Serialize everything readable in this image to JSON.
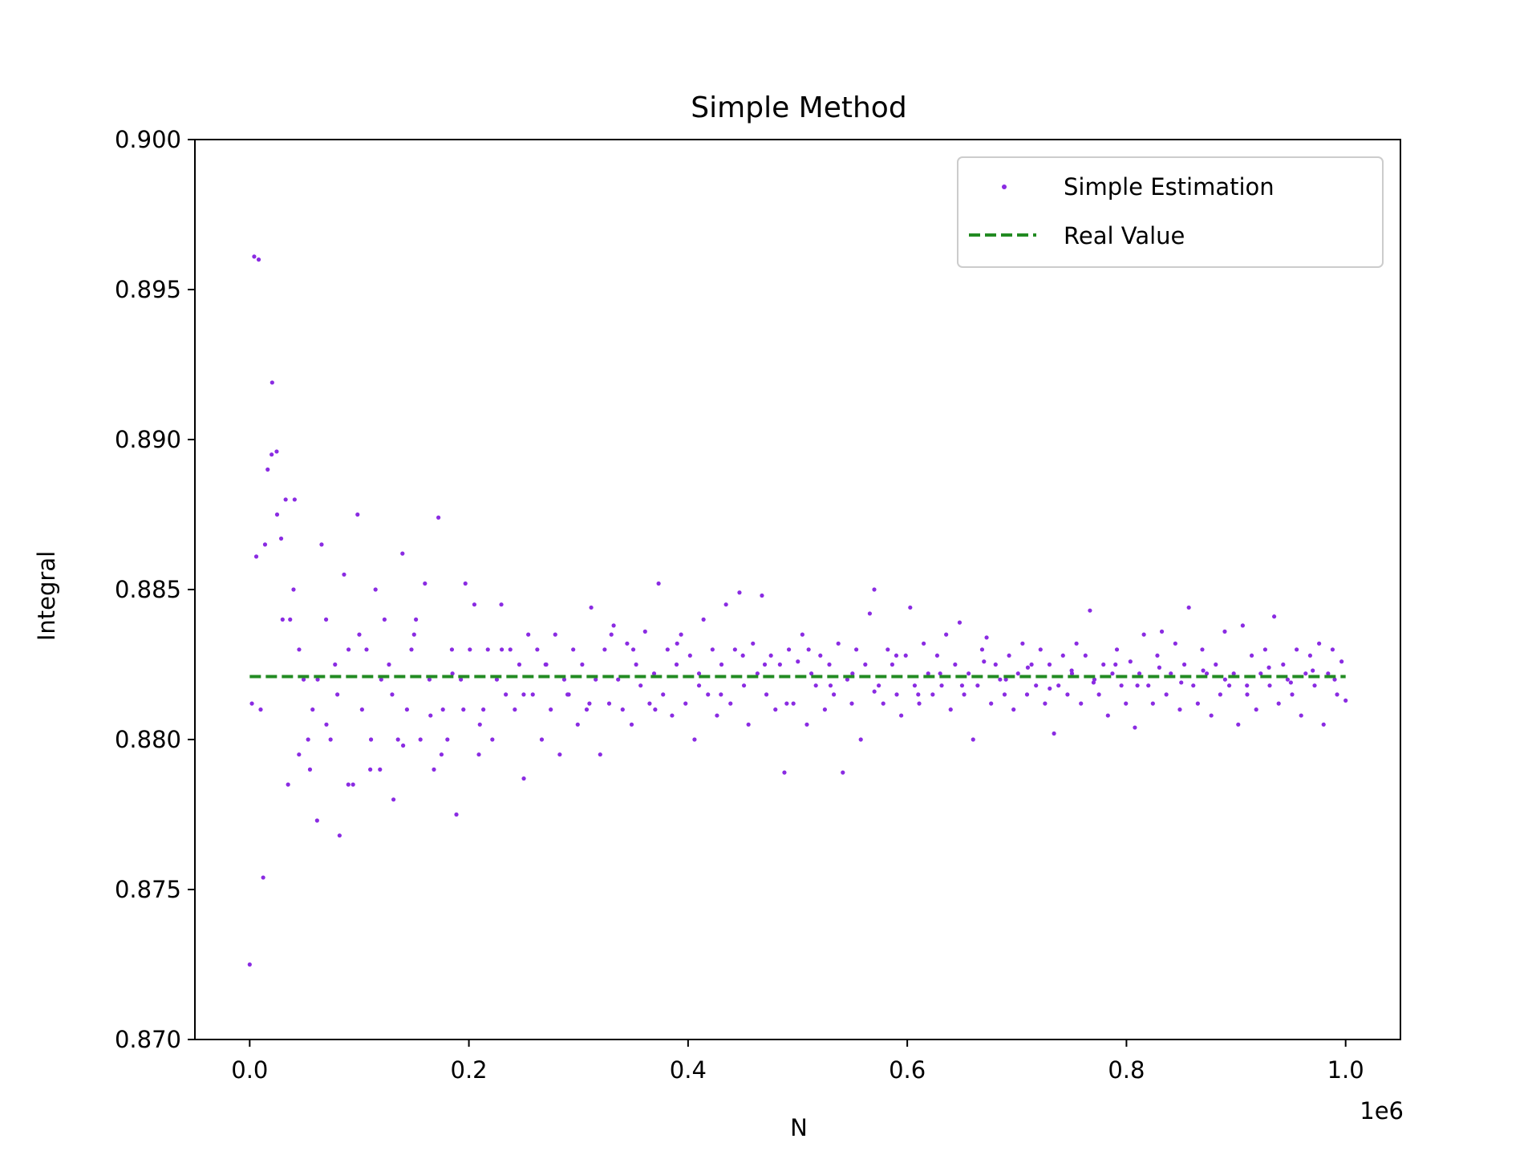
{
  "chart_data": {
    "type": "scatter",
    "title": "Simple Method",
    "xlabel": "N",
    "ylabel": "Integral",
    "x_offset_label": "1e6",
    "xlim": [
      -0.05,
      1.05
    ],
    "ylim": [
      0.87,
      0.9
    ],
    "x_ticks": [
      0.0,
      0.2,
      0.4,
      0.6,
      0.8,
      1.0
    ],
    "x_tick_labels": [
      "0.0",
      "0.2",
      "0.4",
      "0.6",
      "0.8",
      "1.0"
    ],
    "y_ticks": [
      0.87,
      0.875,
      0.88,
      0.885,
      0.89,
      0.895,
      0.9
    ],
    "y_tick_labels": [
      "0.870",
      "0.875",
      "0.880",
      "0.885",
      "0.890",
      "0.895",
      "0.900"
    ],
    "grid": false,
    "legend_position": "top-right",
    "series": [
      {
        "name": "Simple Estimation",
        "kind": "scatter",
        "color": "#8a2be2",
        "x": [
          0.0,
          0.0041,
          0.0082,
          0.0123,
          0.0164,
          0.0205,
          0.0246,
          0.0287,
          0.0328,
          0.0369,
          0.041,
          0.0451,
          0.0492,
          0.0533,
          0.0574,
          0.0615,
          0.0656,
          0.0697,
          0.0738,
          0.0779,
          0.082,
          0.0861,
          0.0902,
          0.0943,
          0.0984,
          0.1025,
          0.1066,
          0.1107,
          0.1148,
          0.1189,
          0.123,
          0.1271,
          0.1312,
          0.1353,
          0.1394,
          0.1435,
          0.1476,
          0.1517,
          0.1558,
          0.1599,
          0.164,
          0.1681,
          0.1722,
          0.1763,
          0.1804,
          0.1845,
          0.1886,
          0.1927,
          0.1968,
          0.2009,
          0.205,
          0.2091,
          0.2132,
          0.2173,
          0.2214,
          0.2255,
          0.2296,
          0.2337,
          0.2378,
          0.2419,
          0.246,
          0.2501,
          0.2542,
          0.2583,
          0.2624,
          0.2665,
          0.2706,
          0.2747,
          0.2788,
          0.2829,
          0.287,
          0.2911,
          0.2952,
          0.2993,
          0.3034,
          0.3075,
          0.3116,
          0.3157,
          0.3198,
          0.3239,
          0.328,
          0.3321,
          0.3362,
          0.3403,
          0.3444,
          0.3485,
          0.3526,
          0.3567,
          0.3608,
          0.3649,
          0.369,
          0.3731,
          0.3772,
          0.3813,
          0.3854,
          0.3895,
          0.3936,
          0.3977,
          0.4018,
          0.4059,
          0.41,
          0.4141,
          0.4182,
          0.4223,
          0.4264,
          0.4305,
          0.4346,
          0.4387,
          0.4428,
          0.4469,
          0.451,
          0.4551,
          0.4592,
          0.4633,
          0.4674,
          0.4715,
          0.4756,
          0.4797,
          0.4838,
          0.4879,
          0.492,
          0.4961,
          0.5002,
          0.5043,
          0.5084,
          0.5125,
          0.5166,
          0.5207,
          0.5248,
          0.5289,
          0.533,
          0.5371,
          0.5412,
          0.5453,
          0.5494,
          0.5535,
          0.5576,
          0.5617,
          0.5658,
          0.5699,
          0.574,
          0.5781,
          0.5822,
          0.5863,
          0.5904,
          0.5945,
          0.5986,
          0.6027,
          0.6068,
          0.6109,
          0.615,
          0.6191,
          0.6232,
          0.6273,
          0.6314,
          0.6355,
          0.6396,
          0.6437,
          0.6478,
          0.6519,
          0.656,
          0.6601,
          0.6642,
          0.6683,
          0.6724,
          0.6765,
          0.6806,
          0.6847,
          0.6888,
          0.6929,
          0.697,
          0.7011,
          0.7052,
          0.7093,
          0.7134,
          0.7175,
          0.7216,
          0.7257,
          0.7298,
          0.7339,
          0.738,
          0.7421,
          0.7462,
          0.7503,
          0.7544,
          0.7585,
          0.7626,
          0.7667,
          0.7708,
          0.7749,
          0.779,
          0.7831,
          0.7872,
          0.7913,
          0.7954,
          0.7995,
          0.8036,
          0.8077,
          0.8118,
          0.8159,
          0.82,
          0.8241,
          0.8282,
          0.8323,
          0.8364,
          0.8405,
          0.8446,
          0.8487,
          0.8528,
          0.8569,
          0.861,
          0.8651,
          0.8692,
          0.8733,
          0.8774,
          0.8815,
          0.8856,
          0.8897,
          0.8938,
          0.8979,
          0.902,
          0.9061,
          0.9102,
          0.9143,
          0.9184,
          0.9225,
          0.9266,
          0.9307,
          0.9348,
          0.9389,
          0.943,
          0.9471,
          0.9512,
          0.9553,
          0.9594,
          0.9635,
          0.9676,
          0.9717,
          0.9758,
          0.9799,
          0.984,
          0.9881,
          0.9922,
          0.9963,
          1.0,
          0.002,
          0.006,
          0.01,
          0.014,
          0.02,
          0.025,
          0.03,
          0.035,
          0.04,
          0.045,
          0.055,
          0.062,
          0.07,
          0.08,
          0.09,
          0.1,
          0.11,
          0.12,
          0.13,
          0.14,
          0.15,
          0.165,
          0.175,
          0.185,
          0.195,
          0.21,
          0.23,
          0.25,
          0.27,
          0.29,
          0.31,
          0.33,
          0.35,
          0.37,
          0.39,
          0.41,
          0.43,
          0.45,
          0.47,
          0.49,
          0.51,
          0.53,
          0.55,
          0.57,
          0.59,
          0.61,
          0.63,
          0.65,
          0.67,
          0.69,
          0.71,
          0.73,
          0.75,
          0.77,
          0.79,
          0.81,
          0.83,
          0.85,
          0.87,
          0.89,
          0.91,
          0.93,
          0.95,
          0.97,
          0.99
        ],
        "y": [
          0.8725,
          0.8961,
          0.896,
          0.8754,
          0.889,
          0.8919,
          0.8896,
          0.8867,
          0.888,
          0.884,
          0.888,
          0.883,
          0.882,
          0.88,
          0.881,
          0.8773,
          0.8865,
          0.884,
          0.88,
          0.8825,
          0.8768,
          0.8855,
          0.883,
          0.8785,
          0.8875,
          0.881,
          0.883,
          0.88,
          0.885,
          0.879,
          0.884,
          0.8825,
          0.878,
          0.88,
          0.8862,
          0.881,
          0.883,
          0.884,
          0.88,
          0.8852,
          0.882,
          0.879,
          0.8874,
          0.881,
          0.88,
          0.883,
          0.8775,
          0.882,
          0.8852,
          0.883,
          0.8845,
          0.8795,
          0.881,
          0.883,
          0.88,
          0.882,
          0.8845,
          0.8815,
          0.883,
          0.881,
          0.8825,
          0.8787,
          0.8835,
          0.8815,
          0.883,
          0.88,
          0.8825,
          0.881,
          0.8835,
          0.8795,
          0.882,
          0.8815,
          0.883,
          0.8805,
          0.8825,
          0.881,
          0.8844,
          0.882,
          0.8795,
          0.883,
          0.8812,
          0.8838,
          0.882,
          0.881,
          0.8832,
          0.8805,
          0.8825,
          0.8818,
          0.8836,
          0.8812,
          0.8822,
          0.8852,
          0.8815,
          0.883,
          0.8808,
          0.8825,
          0.8835,
          0.8812,
          0.8828,
          0.88,
          0.8822,
          0.884,
          0.8815,
          0.883,
          0.8808,
          0.8825,
          0.8845,
          0.8812,
          0.883,
          0.8849,
          0.8818,
          0.8805,
          0.8832,
          0.8822,
          0.8848,
          0.8815,
          0.8828,
          0.881,
          0.8825,
          0.8789,
          0.883,
          0.8812,
          0.8826,
          0.8835,
          0.8805,
          0.8822,
          0.8818,
          0.8828,
          0.881,
          0.8825,
          0.8815,
          0.8832,
          0.8789,
          0.882,
          0.8812,
          0.883,
          0.88,
          0.8825,
          0.8842,
          0.885,
          0.8818,
          0.8812,
          0.883,
          0.8825,
          0.8815,
          0.8808,
          0.8828,
          0.8844,
          0.8818,
          0.8812,
          0.8832,
          0.8822,
          0.8815,
          0.8828,
          0.8818,
          0.8835,
          0.881,
          0.8825,
          0.8839,
          0.8815,
          0.8822,
          0.88,
          0.8818,
          0.883,
          0.8834,
          0.8812,
          0.8825,
          0.882,
          0.8815,
          0.8828,
          0.881,
          0.8822,
          0.8832,
          0.8815,
          0.8825,
          0.8818,
          0.883,
          0.8812,
          0.8825,
          0.8802,
          0.8818,
          0.8828,
          0.8815,
          0.8822,
          0.8832,
          0.8812,
          0.8828,
          0.8843,
          0.882,
          0.8815,
          0.8825,
          0.8808,
          0.8822,
          0.883,
          0.8818,
          0.8812,
          0.8826,
          0.8804,
          0.8822,
          0.8835,
          0.8818,
          0.8812,
          0.8828,
          0.8836,
          0.8815,
          0.8822,
          0.8832,
          0.881,
          0.8825,
          0.8844,
          0.8818,
          0.8812,
          0.883,
          0.8822,
          0.8808,
          0.8825,
          0.8815,
          0.8836,
          0.8818,
          0.8822,
          0.8805,
          0.8838,
          0.8815,
          0.8828,
          0.881,
          0.8822,
          0.883,
          0.8818,
          0.8841,
          0.8812,
          0.8825,
          0.882,
          0.8815,
          0.883,
          0.8808,
          0.8822,
          0.8828,
          0.8818,
          0.8832,
          0.8805,
          0.8822,
          0.883,
          0.8815,
          0.8826,
          0.8813,
          0.8812,
          0.8861,
          0.881,
          0.8865,
          0.8895,
          0.8875,
          0.884,
          0.8785,
          0.885,
          0.8795,
          0.879,
          0.882,
          0.8805,
          0.8815,
          0.8785,
          0.8835,
          0.879,
          0.882,
          0.8815,
          0.8798,
          0.8835,
          0.8808,
          0.8795,
          0.8822,
          0.881,
          0.8805,
          0.883,
          0.8815,
          0.8825,
          0.8815,
          0.8812,
          0.8835,
          0.883,
          0.881,
          0.8832,
          0.8818,
          0.8815,
          0.8828,
          0.8825,
          0.8812,
          0.883,
          0.8818,
          0.8822,
          0.8816,
          0.8828,
          0.8815,
          0.8822,
          0.8818,
          0.8826,
          0.882,
          0.8824,
          0.8817,
          0.8823,
          0.8819,
          0.8825,
          0.8818,
          0.8824,
          0.8819,
          0.8823,
          0.882,
          0.8818,
          0.8824,
          0.8819,
          0.8823,
          0.882
        ]
      },
      {
        "name": "Real Value",
        "kind": "line",
        "color": "#228b22",
        "dashed": true,
        "x": [
          0.0,
          1.0
        ],
        "y": [
          0.8821,
          0.8821
        ]
      }
    ]
  }
}
